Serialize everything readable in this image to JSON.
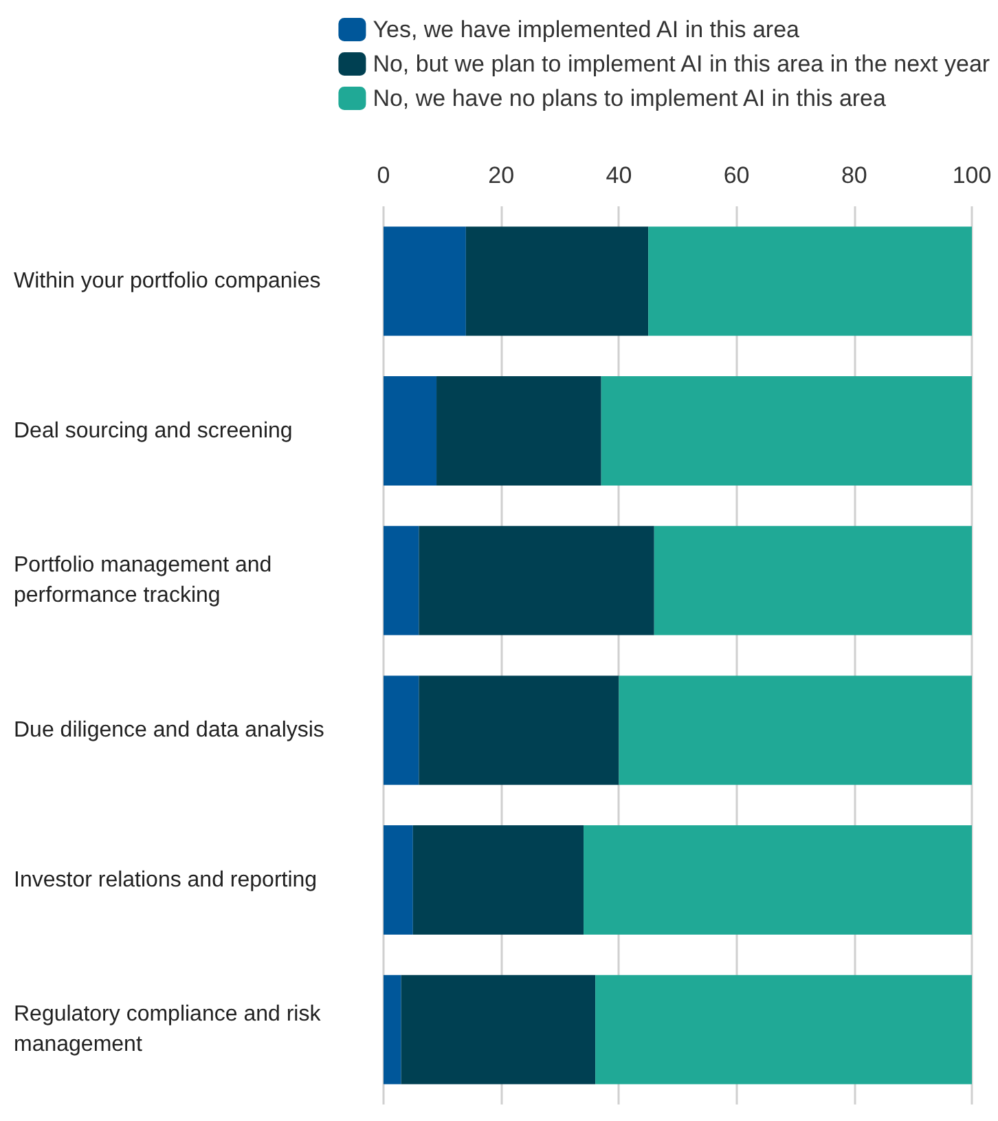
{
  "chart_data": {
    "type": "bar",
    "orientation": "horizontal",
    "stacked": true,
    "categories": [
      "Within your portfolio companies",
      "Deal sourcing and screening",
      "Portfolio management and performance tracking",
      "Due diligence and data analysis",
      "Investor relations and reporting",
      "Regulatory compliance and risk management"
    ],
    "series": [
      {
        "name": "Yes, we have implemented AI in this area",
        "color": "#00579a",
        "values": [
          14,
          9,
          6,
          6,
          5,
          3
        ]
      },
      {
        "name": "No, but we plan to implement AI in this area in the next year",
        "color": "#004052",
        "values": [
          31,
          28,
          40,
          34,
          29,
          33
        ]
      },
      {
        "name": "No, we have no plans to implement AI in this area",
        "color": "#20a996",
        "values": [
          55,
          63,
          54,
          60,
          66,
          64
        ]
      }
    ],
    "xlim": [
      0,
      100
    ],
    "xticks": [
      0,
      20,
      40,
      60,
      80,
      100
    ],
    "grid": "x",
    "legend": "top right"
  }
}
